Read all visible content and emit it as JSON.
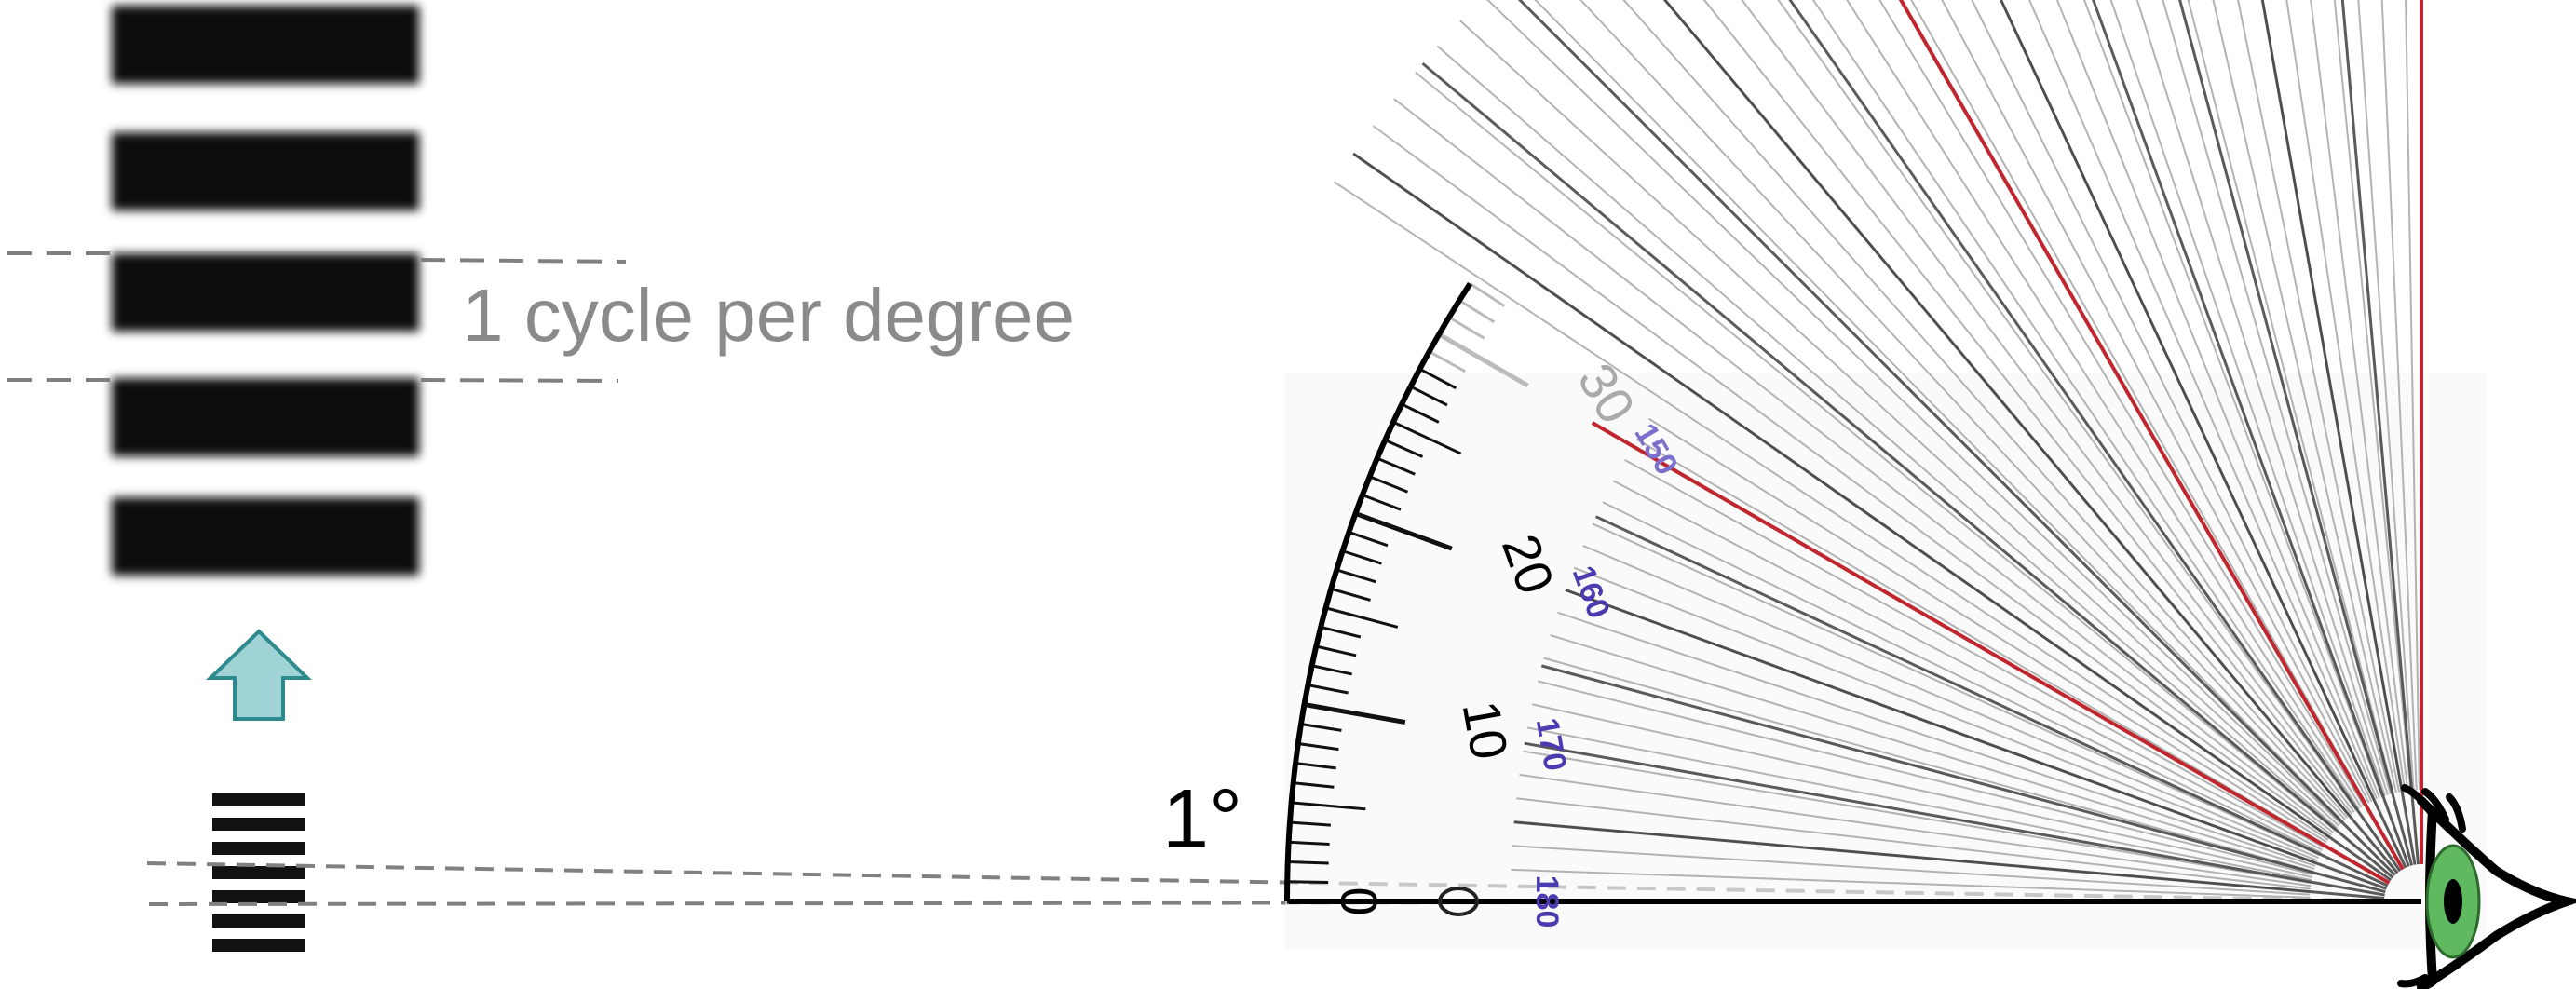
{
  "annotations": {
    "frequency_label": "1 cycle per degree",
    "angle_label": "1°"
  },
  "protractor": {
    "outer_ticks": [
      "0",
      "10",
      "20",
      "30"
    ],
    "inner_ticks": [
      "180",
      "170",
      "160",
      "150"
    ]
  },
  "colors": {
    "grating_dark": "#111111",
    "grating_light": "#ffffff",
    "arrow_fill": "#9fd3d6",
    "arrow_stroke": "#2f8a8e",
    "guide_line": "#808080",
    "caption_text": "#8a8a8a",
    "inner_scale": "#4a3bb0",
    "red_line": "#c0262e",
    "iris": "#5fb95f"
  },
  "icons": {
    "up_arrow": "up-arrow-icon",
    "eye": "eye-icon"
  }
}
